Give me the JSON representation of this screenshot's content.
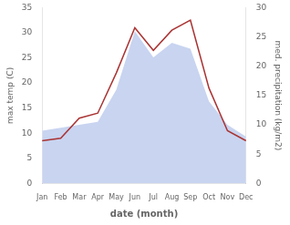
{
  "chart_data": {
    "type": "line",
    "xlabel": "date (month)",
    "ylabel": "max temp (C)",
    "y2label": "med. precipitation (kg/m2)",
    "categories": [
      "Jan",
      "Feb",
      "Mar",
      "Apr",
      "May",
      "Jun",
      "Jul",
      "Aug",
      "Sep",
      "Oct",
      "Nov",
      "Dec"
    ],
    "series": [
      {
        "type": "area",
        "axis": "y2",
        "color": "#c8d4f0",
        "values": [
          9,
          9.5,
          10,
          10.5,
          16,
          26,
          21.5,
          24,
          23,
          14,
          10,
          8
        ]
      },
      {
        "type": "line",
        "color": "#aa3333",
        "values": [
          8.5,
          9.0,
          13.0,
          14.0,
          22.0,
          31.0,
          26.5,
          30.5,
          32.5,
          19.0,
          10.5,
          8.5
        ]
      }
    ],
    "ylim": [
      0,
      35
    ],
    "yticks": [
      0,
      5,
      10,
      15,
      20,
      25,
      30,
      35
    ],
    "y2lim": [
      0,
      30
    ],
    "y2ticks": [
      0,
      5,
      10,
      15,
      20,
      25,
      30
    ],
    "grid": false,
    "legend": false
  }
}
